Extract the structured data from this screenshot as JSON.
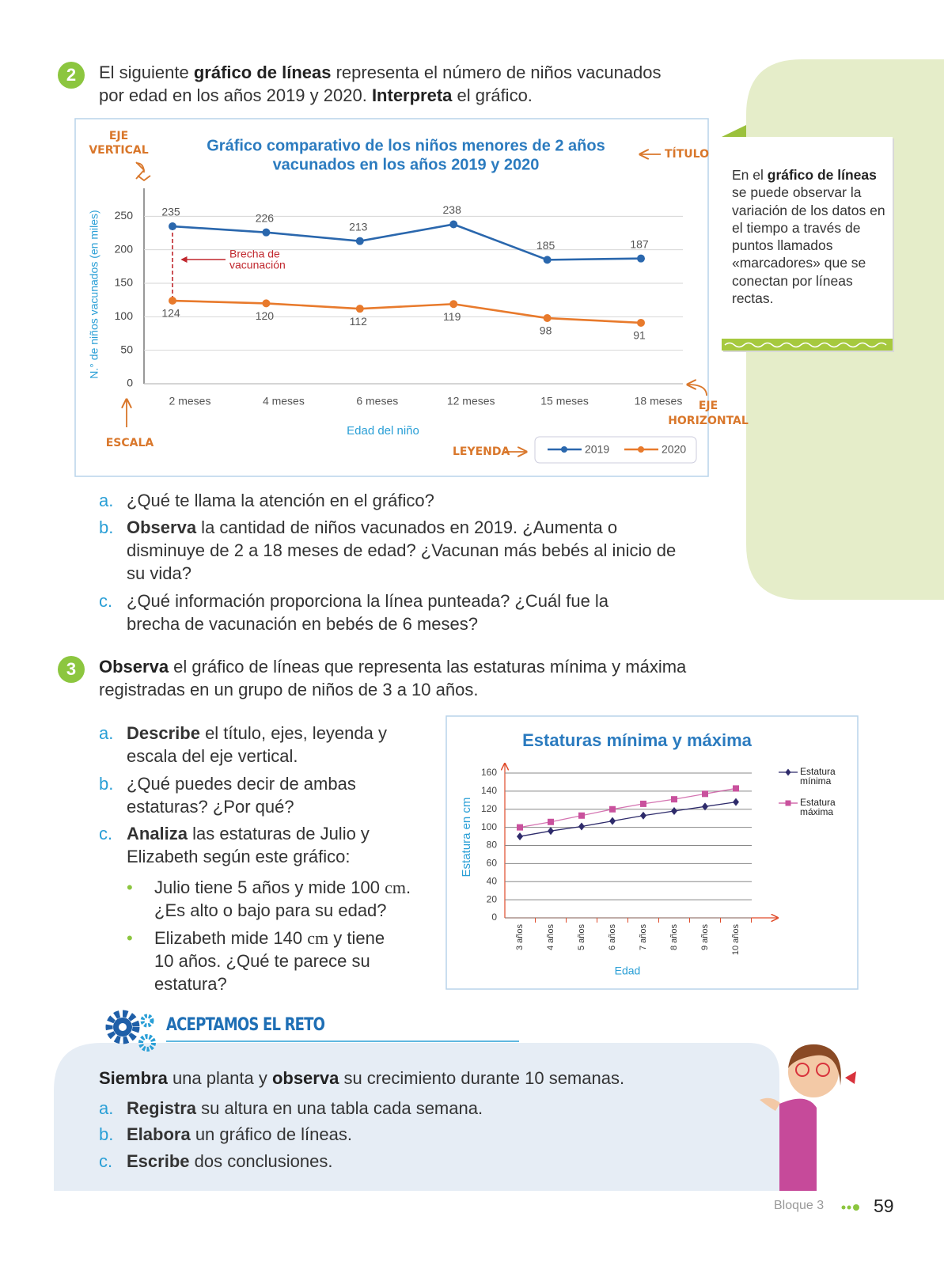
{
  "exercise_2": {
    "number": 2,
    "statement": [
      "El siguiente ",
      "gráfico de líneas",
      " representa el número de niños vacunados por edad en los años 2019 y 2020. ",
      "Interpreta",
      " el gráfico."
    ],
    "questions": [
      {
        "letter": "a.",
        "text": [
          "¿Qué te llama la atención en el gráfico?"
        ]
      },
      {
        "letter": "b.",
        "text": [
          "Observa",
          " la cantidad de niños vacunados en 2019. ¿Aumenta o disminuye de 2 a 18 meses de edad? ¿Vacunan más bebés al inicio de su vida?"
        ]
      },
      {
        "letter": "c.",
        "text": [
          "¿Qué información proporciona la línea punteada? ¿Cuál fue la brecha de vacunación en bebés de 6 meses?"
        ]
      }
    ]
  },
  "sidebar": {
    "text": [
      "En el ",
      "gráfico de líneas",
      " se puede observar la variación de los datos en el tiempo a través de puntos llamados «marcadores» que se conectan por líneas rectas."
    ]
  },
  "exercise_3": {
    "number": 3,
    "statement": [
      "Observa",
      " el gráfico de líneas que representa las estaturas mínima y máxima registradas en un grupo de niños de 3 a 10 años."
    ],
    "questions": [
      {
        "letter": "a.",
        "text": [
          "Describe",
          " el título, ejes, leyenda y escala del eje vertical."
        ]
      },
      {
        "letter": "b.",
        "text": [
          "¿Qué puedes decir de ambas estaturas? ¿Por qué?"
        ]
      },
      {
        "letter": "c.",
        "text": [
          "Analiza",
          " las estaturas de Julio y Elizabeth según este gráfico:"
        ]
      }
    ],
    "bullets": [
      [
        "Julio tiene 5 años y mide 100 ",
        "cm",
        ". ¿Es alto o bajo para su edad?"
      ],
      [
        "Elizabeth mide 140 ",
        "cm",
        " y tiene 10 años. ¿Qué te parece su estatura?"
      ]
    ]
  },
  "challenge": {
    "title": "ACEPTAMOS EL RETO",
    "intro": [
      "Siembra",
      " una planta y ",
      "observa",
      " su crecimiento durante 10 semanas."
    ],
    "items": [
      {
        "letter": "a.",
        "text": [
          "Registra",
          " su altura en una tabla cada semana."
        ]
      },
      {
        "letter": "b.",
        "text": [
          "Elabora",
          " un gráfico de líneas."
        ]
      },
      {
        "letter": "c.",
        "text": [
          "Escribe",
          " dos conclusiones."
        ]
      }
    ]
  },
  "footer": {
    "block": "Bloque 3",
    "page": 59
  },
  "chart_data": [
    {
      "type": "line",
      "title": [
        "Gráfico comparativo de los niños menores de 2 años",
        "vacunados en los años 2019 y 2020"
      ],
      "x_label": "Edad del niño",
      "y_label": "N.° de niños vacunados (en miles)",
      "categories": [
        "2 meses",
        "4 meses",
        "6 meses",
        "12 meses",
        "15 meses",
        "18 meses"
      ],
      "series": [
        {
          "name": "2019",
          "color": "#2a67ad",
          "values": [
            235,
            226,
            213,
            238,
            185,
            187
          ]
        },
        {
          "name": "2020",
          "color": "#e87a2c",
          "values": [
            124,
            120,
            112,
            119,
            98,
            91
          ]
        }
      ],
      "ylim": [
        0,
        270
      ],
      "yticks": [
        0,
        50,
        100,
        150,
        200,
        250
      ],
      "grid": true,
      "data_labels": true,
      "annotations": {
        "vertical_axis": [
          "EJE",
          "VERTICAL"
        ],
        "title": "TÍTULO",
        "scale": "ESCALA",
        "horizontal_axis": [
          "EJE",
          "HORIZONTAL"
        ],
        "legend": "LEYENDA",
        "gap": [
          "Brecha de",
          "vacunación"
        ]
      }
    },
    {
      "type": "line",
      "title": "Estaturas mínima y máxima",
      "x_label": "Edad",
      "y_label": "Estatura en cm",
      "categories": [
        "3 años",
        "4 años",
        "5 años",
        "6 años",
        "7 años",
        "8 años",
        "9 años",
        "10 años"
      ],
      "series": [
        {
          "name": "Estatura mínima",
          "color": "#2e2b6b",
          "marker": "diamond",
          "values": [
            90,
            96,
            101,
            107,
            113,
            118,
            123,
            128
          ]
        },
        {
          "name": "Estatura máxima",
          "color": "#c9519d",
          "marker": "square",
          "values": [
            100,
            106,
            113,
            120,
            126,
            131,
            137,
            143
          ]
        }
      ],
      "ylim": [
        0,
        160
      ],
      "yticks": [
        0,
        20,
        40,
        60,
        80,
        100,
        120,
        140,
        160
      ],
      "grid": true
    }
  ]
}
